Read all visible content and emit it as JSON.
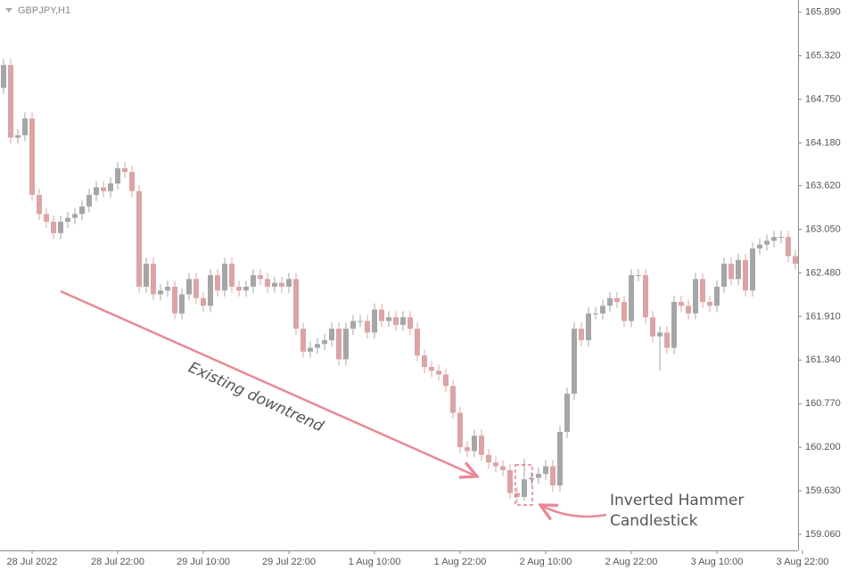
{
  "chart_data": {
    "type": "candlestick",
    "symbol": "GBPJPY,H1",
    "up_color": "#a6a6a6",
    "down_color": "#dca4a4",
    "open": [
      164.9,
      165.2,
      164.25,
      164.28,
      164.5,
      163.5,
      163.25,
      163.15,
      163.0,
      163.15,
      163.2,
      163.25,
      163.35,
      163.5,
      163.6,
      163.55,
      163.65,
      163.85,
      163.8,
      163.55,
      162.3,
      162.6,
      162.2,
      162.25,
      162.3,
      161.95,
      162.2,
      162.4,
      162.15,
      162.05,
      162.45,
      162.25,
      162.6,
      162.3,
      162.25,
      162.3,
      162.45,
      162.4,
      162.3,
      162.35,
      162.3,
      162.4,
      161.75,
      161.45,
      161.5,
      161.55,
      161.6,
      161.75,
      161.35,
      161.75,
      161.85,
      161.85,
      161.7,
      162.0,
      161.85,
      161.9,
      161.8,
      161.9,
      161.75,
      161.4,
      161.25,
      161.2,
      161.15,
      161.0,
      160.65,
      160.2,
      160.15,
      160.35,
      160.1,
      160.0,
      159.95,
      159.9,
      159.6,
      159.55,
      159.78,
      159.8,
      159.85,
      159.95,
      159.7,
      160.4,
      160.9,
      161.75,
      161.6,
      161.95,
      161.95,
      162.05,
      162.15,
      162.1,
      161.85,
      162.45,
      162.45,
      161.9,
      161.65,
      161.7,
      161.5,
      162.1,
      162.05,
      161.95,
      162.4,
      162.1,
      162.05,
      162.3,
      162.6,
      162.4,
      162.65,
      162.25,
      162.8,
      162.85,
      162.9,
      162.95,
      162.95,
      162.7
    ],
    "high": [
      165.28,
      165.28,
      164.36,
      164.58,
      164.58,
      163.58,
      163.33,
      163.23,
      163.23,
      163.28,
      163.33,
      163.43,
      163.58,
      163.68,
      163.68,
      163.73,
      163.93,
      163.93,
      163.88,
      163.63,
      162.68,
      162.68,
      162.33,
      162.38,
      162.38,
      162.28,
      162.48,
      162.48,
      162.23,
      162.53,
      162.53,
      162.68,
      162.68,
      162.38,
      162.38,
      162.53,
      162.53,
      162.48,
      162.43,
      162.43,
      162.48,
      162.48,
      161.83,
      161.58,
      161.63,
      161.68,
      161.83,
      161.83,
      161.83,
      161.93,
      161.93,
      161.93,
      162.08,
      162.08,
      161.98,
      161.98,
      161.98,
      161.98,
      161.83,
      161.48,
      161.33,
      161.28,
      161.23,
      161.08,
      160.73,
      160.28,
      160.43,
      160.43,
      160.18,
      160.08,
      160.03,
      159.98,
      159.68,
      160.05,
      159.88,
      159.93,
      160.03,
      160.03,
      160.48,
      160.98,
      161.83,
      161.83,
      162.03,
      162.03,
      162.13,
      162.23,
      162.23,
      162.18,
      162.53,
      162.53,
      162.53,
      161.98,
      161.78,
      161.78,
      162.18,
      162.18,
      162.13,
      162.48,
      162.48,
      162.18,
      162.38,
      162.68,
      162.68,
      162.73,
      162.73,
      162.88,
      162.93,
      162.98,
      163.03,
      163.03,
      163.03,
      162.78
    ],
    "low": [
      164.82,
      164.17,
      164.17,
      164.2,
      163.42,
      163.17,
      163.07,
      162.92,
      162.92,
      163.07,
      163.12,
      163.17,
      163.27,
      163.42,
      163.47,
      163.47,
      163.57,
      163.72,
      163.47,
      162.22,
      162.22,
      162.12,
      162.12,
      162.17,
      161.87,
      161.87,
      162.12,
      162.07,
      161.97,
      161.97,
      162.17,
      162.17,
      162.22,
      162.17,
      162.17,
      162.22,
      162.32,
      162.22,
      162.22,
      162.22,
      162.22,
      161.67,
      161.37,
      161.37,
      161.42,
      161.47,
      161.52,
      161.27,
      161.27,
      161.67,
      161.77,
      161.62,
      161.62,
      161.77,
      161.77,
      161.72,
      161.72,
      161.67,
      161.32,
      161.17,
      161.12,
      161.07,
      160.92,
      160.57,
      160.12,
      160.07,
      160.07,
      160.02,
      159.92,
      159.87,
      159.82,
      159.52,
      159.47,
      159.5,
      159.7,
      159.72,
      159.77,
      159.62,
      159.62,
      160.32,
      160.82,
      161.52,
      161.52,
      161.87,
      161.87,
      161.97,
      162.02,
      161.77,
      161.77,
      162.37,
      161.82,
      161.57,
      161.2,
      161.42,
      161.42,
      161.97,
      161.87,
      161.87,
      162.02,
      161.97,
      161.97,
      162.22,
      162.32,
      162.32,
      162.17,
      162.17,
      162.72,
      162.77,
      162.82,
      162.87,
      162.62,
      162.52
    ],
    "close": [
      165.2,
      164.25,
      164.28,
      164.5,
      163.5,
      163.25,
      163.15,
      163.0,
      163.15,
      163.2,
      163.25,
      163.35,
      163.5,
      163.6,
      163.55,
      163.65,
      163.85,
      163.8,
      163.55,
      162.3,
      162.6,
      162.2,
      162.25,
      162.3,
      161.95,
      162.2,
      162.4,
      162.15,
      162.05,
      162.45,
      162.25,
      162.6,
      162.3,
      162.25,
      162.3,
      162.45,
      162.4,
      162.3,
      162.35,
      162.3,
      162.4,
      161.75,
      161.45,
      161.5,
      161.55,
      161.6,
      161.75,
      161.35,
      161.75,
      161.85,
      161.85,
      161.7,
      162.0,
      161.85,
      161.9,
      161.8,
      161.9,
      161.75,
      161.4,
      161.25,
      161.2,
      161.15,
      161.0,
      160.65,
      160.2,
      160.15,
      160.35,
      160.1,
      160.0,
      159.95,
      159.9,
      159.6,
      159.55,
      159.78,
      159.8,
      159.85,
      159.95,
      159.7,
      160.4,
      160.9,
      161.75,
      161.6,
      161.95,
      161.95,
      162.05,
      162.15,
      162.1,
      161.85,
      162.45,
      162.45,
      161.9,
      161.65,
      161.7,
      161.5,
      162.1,
      162.05,
      161.95,
      162.4,
      162.1,
      162.05,
      162.3,
      162.6,
      162.4,
      162.65,
      162.25,
      162.8,
      162.85,
      162.9,
      162.95,
      162.95,
      162.7,
      162.6
    ],
    "xlim": [
      -0.5,
      112.5
    ],
    "xticks": [
      {
        "value": 4,
        "label": "28 Jul 2022"
      },
      {
        "value": 16,
        "label": "28 Jul 22:00"
      },
      {
        "value": 28,
        "label": "29 Jul 10:00"
      },
      {
        "value": 40,
        "label": "29 Jul 22:00"
      },
      {
        "value": 52,
        "label": "1 Aug 10:00"
      },
      {
        "value": 64,
        "label": "1 Aug 22:00"
      },
      {
        "value": 76,
        "label": "2 Aug 10:00"
      },
      {
        "value": 88,
        "label": "2 Aug 22:00"
      },
      {
        "value": 100,
        "label": "3 Aug 10:00"
      },
      {
        "value": 112,
        "label": "3 Aug 22:00"
      }
    ],
    "ylim": [
      158.85,
      166.05
    ],
    "yticks": [
      {
        "value": 165.89,
        "label": "165.890"
      },
      {
        "value": 165.32,
        "label": "165.320"
      },
      {
        "value": 164.75,
        "label": "164.750"
      },
      {
        "value": 164.18,
        "label": "164.180"
      },
      {
        "value": 163.62,
        "label": "163.620"
      },
      {
        "value": 163.05,
        "label": "163.050"
      },
      {
        "value": 162.48,
        "label": "162.480"
      },
      {
        "value": 161.91,
        "label": "161.910"
      },
      {
        "value": 161.34,
        "label": "161.340"
      },
      {
        "value": 160.77,
        "label": "160.770"
      },
      {
        "value": 160.2,
        "label": "160.200"
      },
      {
        "value": 159.63,
        "label": "159.630"
      },
      {
        "value": 159.06,
        "label": "159.060"
      }
    ],
    "annotations": [
      {
        "text": [
          "Existing downtrend"
        ]
      },
      {
        "text": [
          "Inverted Hammer",
          "Candlestick"
        ]
      }
    ]
  }
}
